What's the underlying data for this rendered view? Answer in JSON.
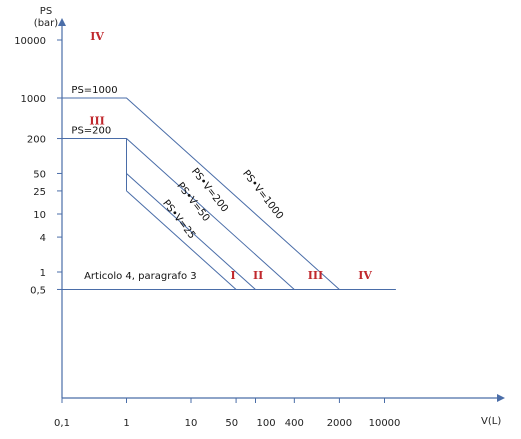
{
  "chart_data": {
    "type": "line",
    "title": "",
    "xlabel": "V(L)",
    "ylabel": "PS",
    "ylabel_unit": "(bar)",
    "x_scale": "log",
    "y_scale": "log",
    "xlim": [
      0.1,
      20000
    ],
    "ylim": [
      0.3,
      40000
    ],
    "x_ticks": [
      {
        "value": 0.1,
        "label": "0,1"
      },
      {
        "value": 1,
        "label": "1"
      },
      {
        "value": 10,
        "label": "10"
      },
      {
        "value": 50,
        "label": "50"
      },
      {
        "value": 100,
        "label": "100"
      },
      {
        "value": 400,
        "label": "400"
      },
      {
        "value": 2000,
        "label": "2000"
      },
      {
        "value": 10000,
        "label": "10000"
      }
    ],
    "y_ticks": [
      {
        "value": 0.5,
        "label": "0,5"
      },
      {
        "value": 1,
        "label": "1"
      },
      {
        "value": 4,
        "label": "4"
      },
      {
        "value": 10,
        "label": "10"
      },
      {
        "value": 25,
        "label": "25"
      },
      {
        "value": 50,
        "label": "50"
      },
      {
        "value": 200,
        "label": "200"
      },
      {
        "value": 1000,
        "label": "1000"
      },
      {
        "value": 10000,
        "label": "10000"
      }
    ],
    "series": [
      {
        "name": "PS•V=1000",
        "color": "#4a6da8",
        "points": [
          [
            0.1,
            1000
          ],
          [
            1,
            1000
          ],
          [
            2000,
            0.5
          ]
        ]
      },
      {
        "name": "PS•V=200",
        "color": "#4a6da8",
        "points": [
          [
            0.1,
            200
          ],
          [
            1,
            200
          ],
          [
            400,
            0.5
          ]
        ]
      },
      {
        "name": "PS•V=50",
        "color": "#4a6da8",
        "points": [
          [
            1,
            50
          ],
          [
            100,
            0.5
          ]
        ]
      },
      {
        "name": "PS•V=25",
        "color": "#4a6da8",
        "points": [
          [
            1,
            25
          ],
          [
            50,
            0.5
          ]
        ]
      },
      {
        "name": "",
        "color": "#4a6da8",
        "points": [
          [
            1,
            25
          ],
          [
            1,
            200
          ]
        ]
      },
      {
        "name": "",
        "color": "#4a6da8",
        "points": [
          [
            0.1,
            0.5
          ],
          [
            15000,
            0.5
          ]
        ]
      }
    ],
    "annotations": [
      {
        "text": "PS=1000",
        "x": 0.14,
        "y": 1000
      },
      {
        "text": "PS=200",
        "x": 0.14,
        "y": 200
      },
      {
        "text": "Articolo 4, paragrafo 3",
        "x": 0.22,
        "y": 0.75
      }
    ],
    "line_labels": [
      {
        "text": "PS•V=1000",
        "x": 120,
        "y": 20,
        "angle": 52
      },
      {
        "text": "PS•V=200",
        "x": 18,
        "y": 24,
        "angle": 52
      },
      {
        "text": "PS•V=50",
        "x": 10,
        "y": 15,
        "angle": 52
      },
      {
        "text": "PS•V=25",
        "x": 6,
        "y": 7.5,
        "angle": 52
      }
    ],
    "category_labels": [
      {
        "text": "IV",
        "x": 0.35,
        "y": 10000
      },
      {
        "text": "III",
        "x": 0.35,
        "y": 350
      },
      {
        "text": "I",
        "x": 45,
        "y": 0.75
      },
      {
        "text": "II",
        "x": 110,
        "y": 0.75
      },
      {
        "text": "III",
        "x": 850,
        "y": 0.75
      },
      {
        "text": "IV",
        "x": 5000,
        "y": 0.75
      }
    ],
    "category_color": "#c0282d",
    "line_color": "#4a6da8",
    "axis_color": "#4a6da8",
    "grid": false
  }
}
